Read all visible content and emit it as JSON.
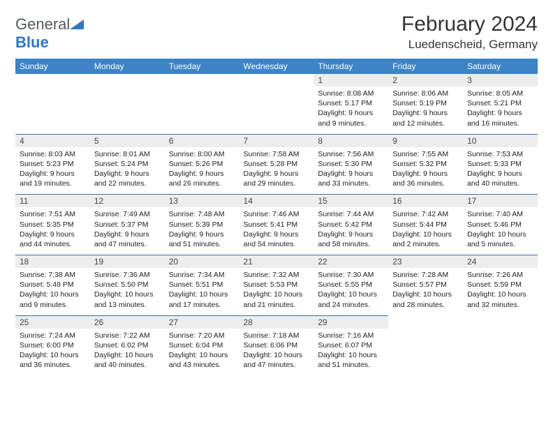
{
  "logo": {
    "textA": "General",
    "textB": "Blue",
    "triangle_color": "#2f77bd"
  },
  "title": "February 2024",
  "location": "Luedenscheid, Germany",
  "colors": {
    "header_bg": "#3d84c6",
    "header_text": "#ffffff",
    "row_divider": "#3d6ea5",
    "daynum_bg": "#ededed",
    "page_bg": "#ffffff"
  },
  "layout": {
    "columns": 7,
    "rows": 5,
    "col_width_pct": 14.28
  },
  "weekdays": [
    "Sunday",
    "Monday",
    "Tuesday",
    "Wednesday",
    "Thursday",
    "Friday",
    "Saturday"
  ],
  "weeks": [
    [
      null,
      null,
      null,
      null,
      {
        "n": "1",
        "sr": "Sunrise: 8:08 AM",
        "ss": "Sunset: 5:17 PM",
        "d1": "Daylight: 9 hours",
        "d2": "and 9 minutes."
      },
      {
        "n": "2",
        "sr": "Sunrise: 8:06 AM",
        "ss": "Sunset: 5:19 PM",
        "d1": "Daylight: 9 hours",
        "d2": "and 12 minutes."
      },
      {
        "n": "3",
        "sr": "Sunrise: 8:05 AM",
        "ss": "Sunset: 5:21 PM",
        "d1": "Daylight: 9 hours",
        "d2": "and 16 minutes."
      }
    ],
    [
      {
        "n": "4",
        "sr": "Sunrise: 8:03 AM",
        "ss": "Sunset: 5:23 PM",
        "d1": "Daylight: 9 hours",
        "d2": "and 19 minutes."
      },
      {
        "n": "5",
        "sr": "Sunrise: 8:01 AM",
        "ss": "Sunset: 5:24 PM",
        "d1": "Daylight: 9 hours",
        "d2": "and 22 minutes."
      },
      {
        "n": "6",
        "sr": "Sunrise: 8:00 AM",
        "ss": "Sunset: 5:26 PM",
        "d1": "Daylight: 9 hours",
        "d2": "and 26 minutes."
      },
      {
        "n": "7",
        "sr": "Sunrise: 7:58 AM",
        "ss": "Sunset: 5:28 PM",
        "d1": "Daylight: 9 hours",
        "d2": "and 29 minutes."
      },
      {
        "n": "8",
        "sr": "Sunrise: 7:56 AM",
        "ss": "Sunset: 5:30 PM",
        "d1": "Daylight: 9 hours",
        "d2": "and 33 minutes."
      },
      {
        "n": "9",
        "sr": "Sunrise: 7:55 AM",
        "ss": "Sunset: 5:32 PM",
        "d1": "Daylight: 9 hours",
        "d2": "and 36 minutes."
      },
      {
        "n": "10",
        "sr": "Sunrise: 7:53 AM",
        "ss": "Sunset: 5:33 PM",
        "d1": "Daylight: 9 hours",
        "d2": "and 40 minutes."
      }
    ],
    [
      {
        "n": "11",
        "sr": "Sunrise: 7:51 AM",
        "ss": "Sunset: 5:35 PM",
        "d1": "Daylight: 9 hours",
        "d2": "and 44 minutes."
      },
      {
        "n": "12",
        "sr": "Sunrise: 7:49 AM",
        "ss": "Sunset: 5:37 PM",
        "d1": "Daylight: 9 hours",
        "d2": "and 47 minutes."
      },
      {
        "n": "13",
        "sr": "Sunrise: 7:48 AM",
        "ss": "Sunset: 5:39 PM",
        "d1": "Daylight: 9 hours",
        "d2": "and 51 minutes."
      },
      {
        "n": "14",
        "sr": "Sunrise: 7:46 AM",
        "ss": "Sunset: 5:41 PM",
        "d1": "Daylight: 9 hours",
        "d2": "and 54 minutes."
      },
      {
        "n": "15",
        "sr": "Sunrise: 7:44 AM",
        "ss": "Sunset: 5:42 PM",
        "d1": "Daylight: 9 hours",
        "d2": "and 58 minutes."
      },
      {
        "n": "16",
        "sr": "Sunrise: 7:42 AM",
        "ss": "Sunset: 5:44 PM",
        "d1": "Daylight: 10 hours",
        "d2": "and 2 minutes."
      },
      {
        "n": "17",
        "sr": "Sunrise: 7:40 AM",
        "ss": "Sunset: 5:46 PM",
        "d1": "Daylight: 10 hours",
        "d2": "and 5 minutes."
      }
    ],
    [
      {
        "n": "18",
        "sr": "Sunrise: 7:38 AM",
        "ss": "Sunset: 5:48 PM",
        "d1": "Daylight: 10 hours",
        "d2": "and 9 minutes."
      },
      {
        "n": "19",
        "sr": "Sunrise: 7:36 AM",
        "ss": "Sunset: 5:50 PM",
        "d1": "Daylight: 10 hours",
        "d2": "and 13 minutes."
      },
      {
        "n": "20",
        "sr": "Sunrise: 7:34 AM",
        "ss": "Sunset: 5:51 PM",
        "d1": "Daylight: 10 hours",
        "d2": "and 17 minutes."
      },
      {
        "n": "21",
        "sr": "Sunrise: 7:32 AM",
        "ss": "Sunset: 5:53 PM",
        "d1": "Daylight: 10 hours",
        "d2": "and 21 minutes."
      },
      {
        "n": "22",
        "sr": "Sunrise: 7:30 AM",
        "ss": "Sunset: 5:55 PM",
        "d1": "Daylight: 10 hours",
        "d2": "and 24 minutes."
      },
      {
        "n": "23",
        "sr": "Sunrise: 7:28 AM",
        "ss": "Sunset: 5:57 PM",
        "d1": "Daylight: 10 hours",
        "d2": "and 28 minutes."
      },
      {
        "n": "24",
        "sr": "Sunrise: 7:26 AM",
        "ss": "Sunset: 5:59 PM",
        "d1": "Daylight: 10 hours",
        "d2": "and 32 minutes."
      }
    ],
    [
      {
        "n": "25",
        "sr": "Sunrise: 7:24 AM",
        "ss": "Sunset: 6:00 PM",
        "d1": "Daylight: 10 hours",
        "d2": "and 36 minutes."
      },
      {
        "n": "26",
        "sr": "Sunrise: 7:22 AM",
        "ss": "Sunset: 6:02 PM",
        "d1": "Daylight: 10 hours",
        "d2": "and 40 minutes."
      },
      {
        "n": "27",
        "sr": "Sunrise: 7:20 AM",
        "ss": "Sunset: 6:04 PM",
        "d1": "Daylight: 10 hours",
        "d2": "and 43 minutes."
      },
      {
        "n": "28",
        "sr": "Sunrise: 7:18 AM",
        "ss": "Sunset: 6:06 PM",
        "d1": "Daylight: 10 hours",
        "d2": "and 47 minutes."
      },
      {
        "n": "29",
        "sr": "Sunrise: 7:16 AM",
        "ss": "Sunset: 6:07 PM",
        "d1": "Daylight: 10 hours",
        "d2": "and 51 minutes."
      },
      null,
      null
    ]
  ]
}
